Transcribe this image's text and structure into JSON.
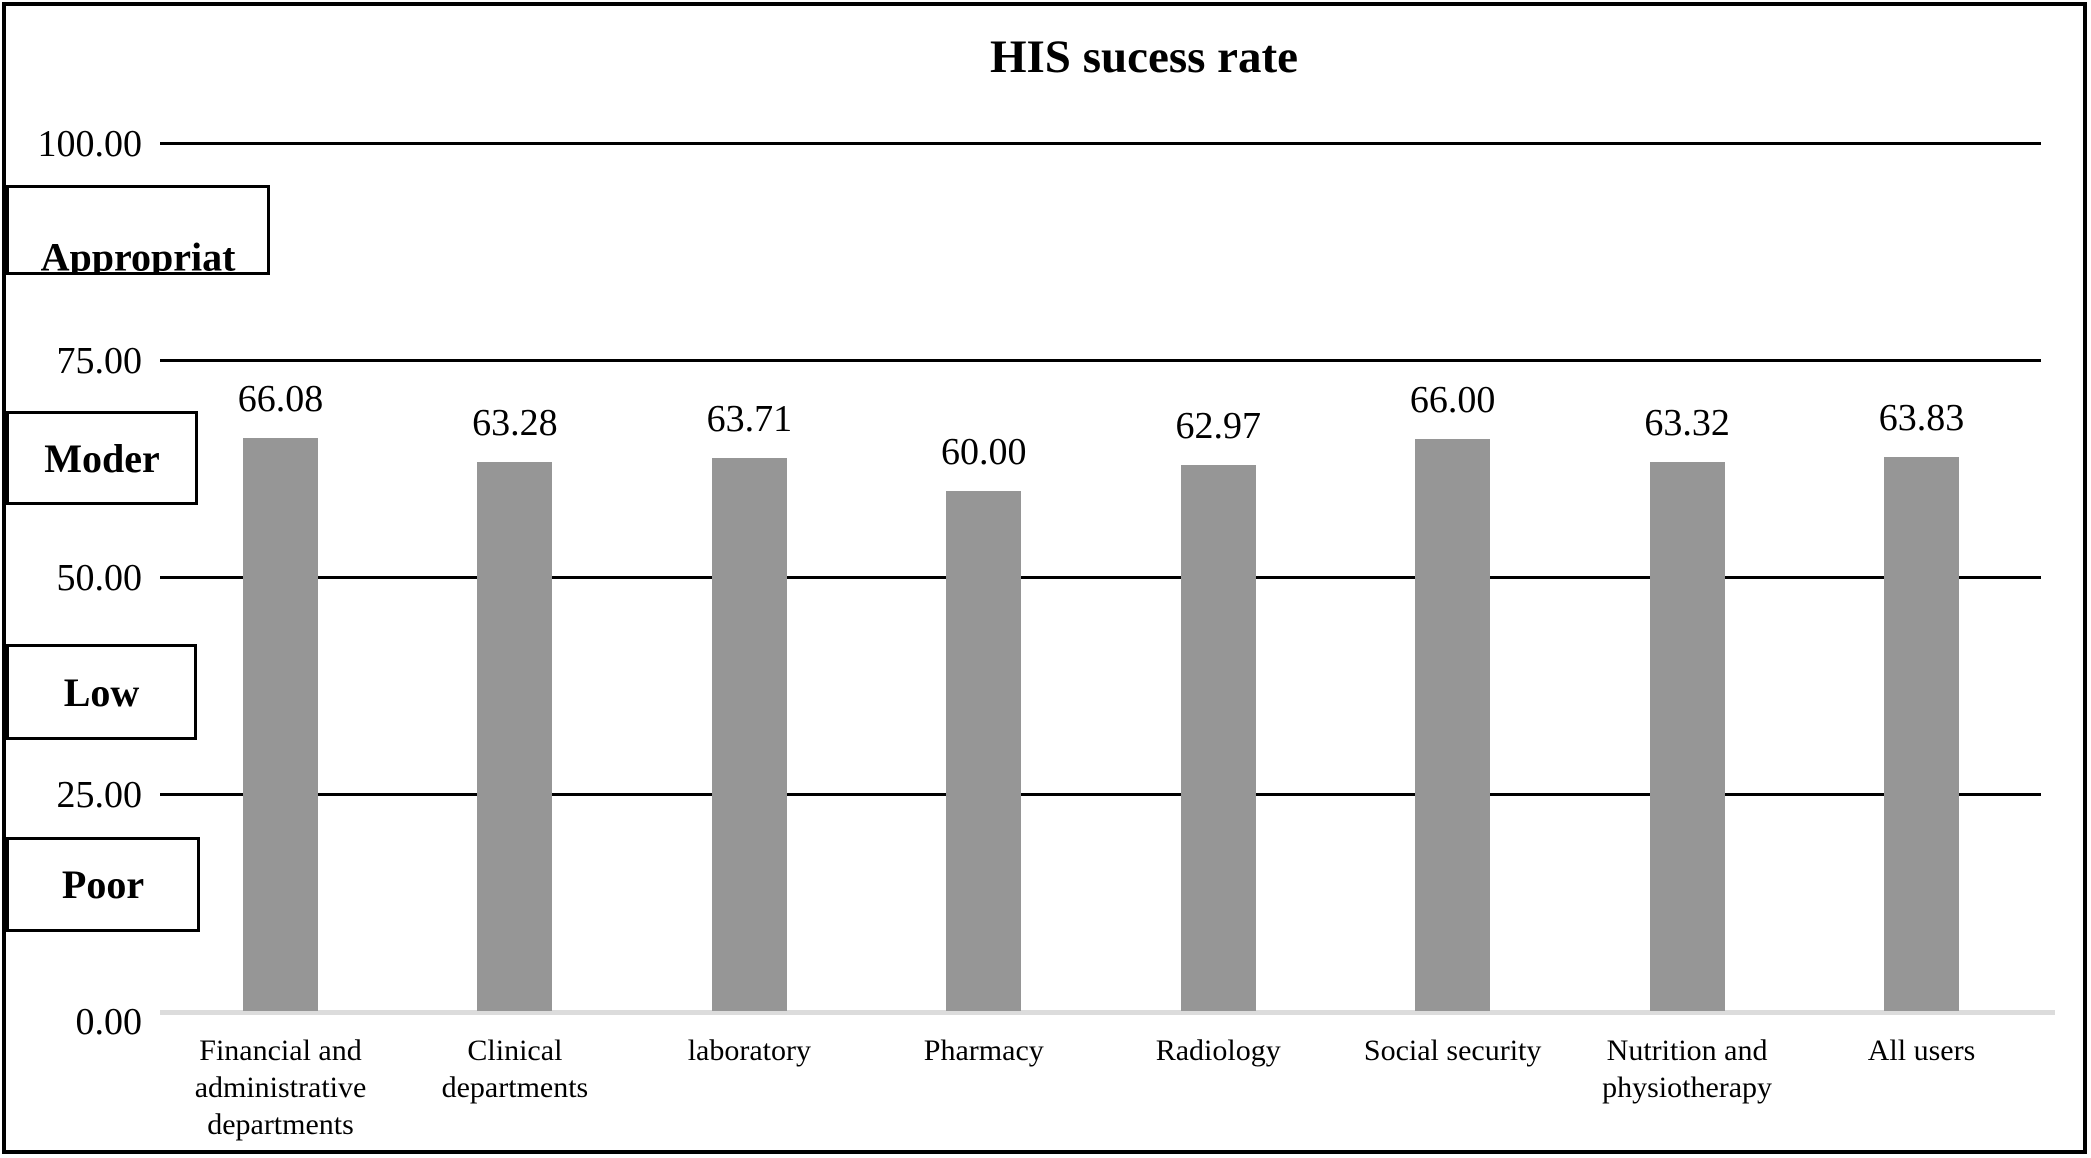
{
  "figure": {
    "title": "HIS sucess rate"
  },
  "chart_data": {
    "type": "bar",
    "title": "HIS sucess rate",
    "categories": [
      "Financial and administrative departments",
      "Clinical departments",
      "laboratory",
      "Pharmacy",
      "Radiology",
      "Social security",
      "Nutrition and physiotherapy",
      "All users"
    ],
    "values": [
      66.08,
      63.28,
      63.71,
      60.0,
      62.97,
      66.0,
      63.32,
      63.83
    ],
    "value_labels": [
      "66.08",
      "63.28",
      "63.71",
      "60.00",
      "62.97",
      "66.00",
      "63.32",
      "63.83"
    ],
    "xlabel": "",
    "ylabel": "",
    "ylim": [
      0,
      100
    ],
    "yticks": [
      0,
      25,
      50,
      75,
      100
    ],
    "ytick_labels": [
      "0.00",
      "25.00",
      "50.00",
      "75.00",
      "100.00"
    ],
    "grid": true,
    "legend": false,
    "rating_band_labels": [
      "Appropriat",
      "Moder",
      "Low",
      "Poor"
    ]
  },
  "colors": {
    "bar": "#969696",
    "gridline": "#000000",
    "baseline": "#dcdcdc",
    "border": "#000000",
    "background": "#ffffff",
    "text": "#000000"
  }
}
